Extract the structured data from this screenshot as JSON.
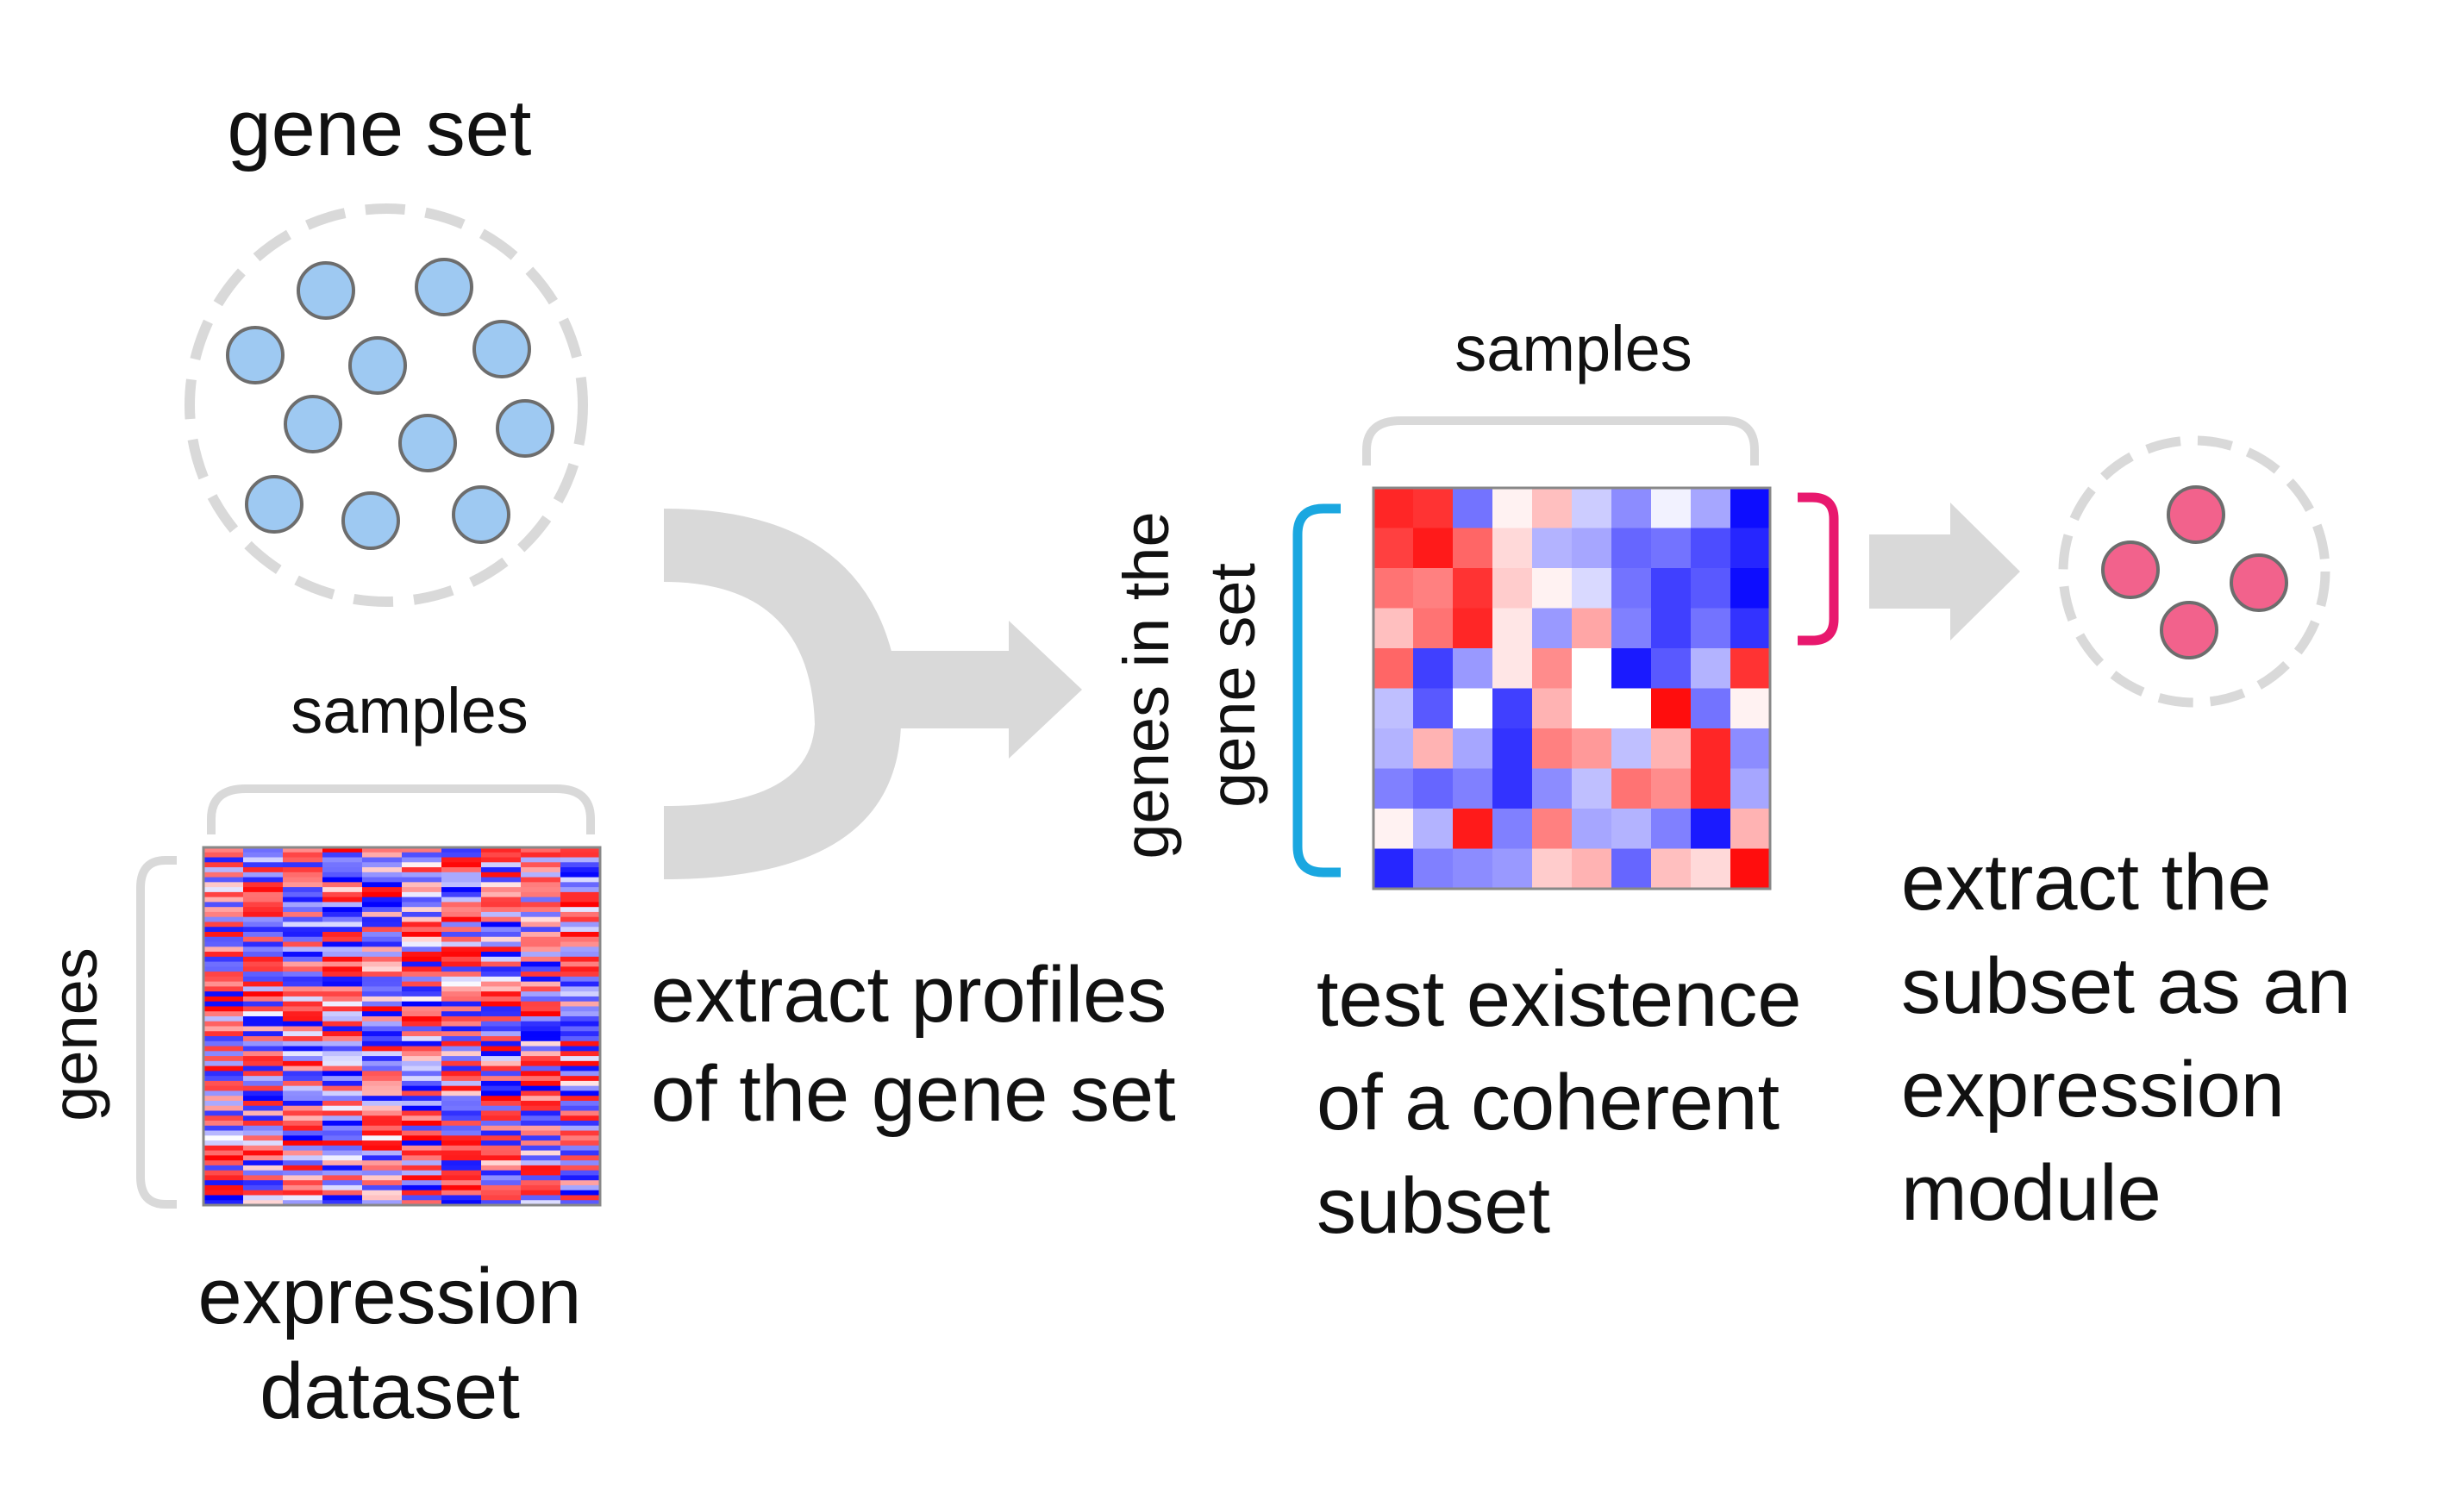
{
  "labels": {
    "gene_set_title": "gene set",
    "samples_top": "samples",
    "samples_left": "samples",
    "genes_axis": "genes",
    "expression_dataset_line1": "expression",
    "expression_dataset_line2": "dataset",
    "extract_profiles_line1": "extract profiles",
    "extract_profiles_line2": "of the gene set",
    "genes_in_set_line1": "genes in the",
    "genes_in_set_line2": "gene set",
    "test_line1": "test existence",
    "test_line2": "of a coherent",
    "test_line3": "subset",
    "extract_subset_line1": "extract the",
    "extract_subset_line2": "subset as an",
    "extract_subset_line3": "expression",
    "extract_subset_line4": "module"
  },
  "colors": {
    "gene_circle_fill": "#9ec9f2",
    "gene_circle_stroke": "#6d6d6d",
    "module_circle_fill": "#f2628c",
    "dashed_outline": "#d9d9d9",
    "bracket_gray": "#d9d9d9",
    "bracket_blue": "#1aa7e0",
    "bracket_pink": "#e8186e",
    "arrow_gray": "#d9d9d9",
    "heat_high": "#ff0000",
    "heat_low": "#0000ff",
    "heat_mid": "#ffffff"
  },
  "gene_set_count": 11,
  "module_gene_count": 4,
  "subset_heatmap": {
    "rows": 10,
    "cols": 10,
    "values": [
      [
        0.85,
        0.8,
        -0.55,
        0.05,
        0.25,
        -0.2,
        -0.45,
        -0.05,
        -0.35,
        -0.95
      ],
      [
        0.75,
        0.9,
        0.6,
        0.15,
        -0.3,
        -0.35,
        -0.6,
        -0.55,
        -0.7,
        -0.85
      ],
      [
        0.55,
        0.5,
        0.8,
        0.2,
        0.05,
        -0.15,
        -0.55,
        -0.75,
        -0.65,
        -0.95
      ],
      [
        0.25,
        0.55,
        0.85,
        0.1,
        -0.4,
        0.35,
        -0.5,
        -0.75,
        -0.55,
        -0.8
      ],
      [
        0.6,
        -0.75,
        -0.4,
        0.1,
        0.45,
        0.0,
        -0.9,
        -0.65,
        -0.3,
        0.8
      ],
      [
        -0.25,
        -0.65,
        0.0,
        -0.75,
        0.3,
        0.0,
        0.0,
        0.95,
        -0.55,
        0.05
      ],
      [
        -0.3,
        0.3,
        -0.35,
        -0.8,
        0.5,
        0.4,
        -0.25,
        0.3,
        0.85,
        -0.45
      ],
      [
        -0.5,
        -0.6,
        -0.5,
        -0.8,
        -0.45,
        -0.25,
        0.55,
        0.45,
        0.85,
        -0.35
      ],
      [
        0.05,
        -0.3,
        0.9,
        -0.5,
        0.5,
        -0.35,
        -0.3,
        -0.5,
        -0.9,
        0.3
      ],
      [
        -0.85,
        -0.5,
        -0.45,
        -0.4,
        0.2,
        0.3,
        -0.6,
        0.25,
        0.15,
        0.95
      ]
    ]
  },
  "full_heatmap": {
    "rows": 72,
    "cols": 10
  }
}
